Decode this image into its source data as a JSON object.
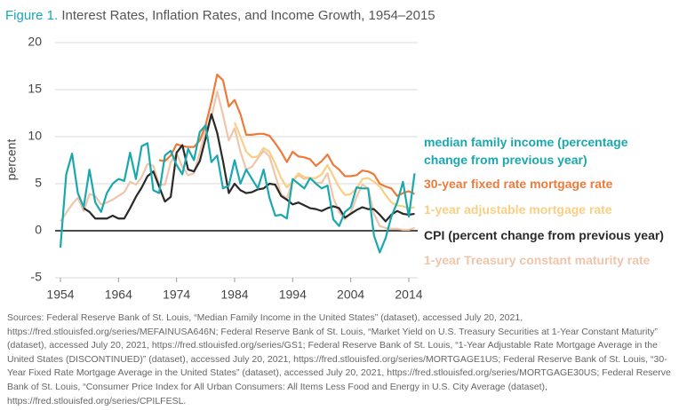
{
  "chart_data": {
    "type": "line",
    "title_label": "Figure 1.",
    "title": "Interest Rates, Inflation Rates, and Income Growth, 1954–2015",
    "y_label": "percent",
    "x": [
      1954,
      1955,
      1956,
      1957,
      1958,
      1959,
      1960,
      1961,
      1962,
      1963,
      1964,
      1965,
      1966,
      1967,
      1968,
      1969,
      1970,
      1971,
      1972,
      1973,
      1974,
      1975,
      1976,
      1977,
      1978,
      1979,
      1980,
      1981,
      1982,
      1983,
      1984,
      1985,
      1986,
      1987,
      1988,
      1989,
      1990,
      1991,
      1992,
      1993,
      1994,
      1995,
      1996,
      1997,
      1998,
      1999,
      2000,
      2001,
      2002,
      2003,
      2004,
      2005,
      2006,
      2007,
      2008,
      2009,
      2010,
      2011,
      2012,
      2013,
      2014,
      2015
    ],
    "xlim": [
      1954,
      2015
    ],
    "xticks": [
      1954,
      1964,
      1974,
      1984,
      1994,
      2004,
      2014
    ],
    "ylim": [
      -5,
      20
    ],
    "yticks": [
      -5,
      0,
      5,
      10,
      15,
      20
    ],
    "grid": true,
    "series": [
      {
        "name": "median family income (percentage change from previous year)",
        "color": "#1aa8ae",
        "values": [
          -1.8,
          6,
          8.2,
          4,
          2.5,
          6.5,
          3,
          2,
          4,
          5,
          5.5,
          5.3,
          8.3,
          5.5,
          9,
          9.3,
          4.3,
          4,
          8,
          8.5,
          7,
          6,
          8.7,
          7.5,
          10.5,
          11.2,
          7.3,
          8,
          4.5,
          4.8,
          7.5,
          5,
          6.5,
          5.5,
          4.5,
          6.5,
          3.5,
          1.6,
          1.7,
          1.3,
          5.5,
          5,
          4.5,
          5.6,
          5,
          4.5,
          4.8,
          1.2,
          0.5,
          2,
          2.5,
          4.6,
          4.5,
          4.5,
          -0.5,
          -2.3,
          -0.8,
          1.5,
          3,
          5.2,
          1.5,
          6.1
        ]
      },
      {
        "name": "30-year fixed rate mortgage rate",
        "color": "#ee7a3a",
        "values": [
          null,
          null,
          null,
          null,
          null,
          null,
          null,
          null,
          null,
          null,
          null,
          null,
          null,
          null,
          null,
          null,
          null,
          7.5,
          7.4,
          8.0,
          9.2,
          9.0,
          8.9,
          8.9,
          9.6,
          11.2,
          13.7,
          16.6,
          16.0,
          13.2,
          13.9,
          12.4,
          10.2,
          10.2,
          10.3,
          10.3,
          10.1,
          9.3,
          8.4,
          7.3,
          8.4,
          7.9,
          7.8,
          7.6,
          6.9,
          7.4,
          8.1,
          7.0,
          6.5,
          5.8,
          5.8,
          5.9,
          6.4,
          6.3,
          6.0,
          5.0,
          4.7,
          4.5,
          3.7,
          4.0,
          4.2,
          3.9
        ]
      },
      {
        "name": "1-year adjustable mortgage rate",
        "color": "#f8cf85",
        "values": [
          null,
          null,
          null,
          null,
          null,
          null,
          null,
          null,
          null,
          null,
          null,
          null,
          null,
          null,
          null,
          null,
          null,
          null,
          null,
          null,
          null,
          null,
          null,
          null,
          null,
          null,
          null,
          null,
          null,
          null,
          11.5,
          10.0,
          8.4,
          7.8,
          7.9,
          8.8,
          8.4,
          7.1,
          5.6,
          4.6,
          5.3,
          6.1,
          5.7,
          5.6,
          5.6,
          6.0,
          7.0,
          5.8,
          4.6,
          3.8,
          3.9,
          4.5,
          5.5,
          5.6,
          5.2,
          4.7,
          3.8,
          3.0,
          2.7,
          2.6,
          2.4,
          2.5
        ]
      },
      {
        "name": "CPI (percent change from previous year)",
        "color": "#2a2a2a",
        "values": [
          null,
          null,
          null,
          null,
          2.4,
          2.0,
          1.3,
          1.3,
          1.3,
          1.6,
          1.3,
          1.3,
          2.4,
          3.6,
          4.6,
          5.8,
          6.3,
          4.7,
          3.1,
          3.6,
          8.3,
          9.1,
          6.5,
          6.3,
          7.4,
          9.8,
          12.4,
          10.4,
          7.4,
          4.0,
          5.0,
          4.3,
          4.0,
          4.1,
          4.4,
          4.5,
          5.0,
          4.9,
          3.7,
          3.3,
          2.8,
          3.0,
          2.7,
          2.4,
          2.3,
          2.1,
          2.4,
          2.6,
          2.4,
          1.4,
          1.8,
          2.2,
          2.5,
          2.3,
          2.3,
          1.7,
          1.0,
          1.7,
          2.1,
          1.8,
          1.7,
          1.8
        ]
      },
      {
        "name": "1-year Treasury constant maturity rate",
        "color": "#efc5ab",
        "values": [
          1.0,
          1.9,
          2.8,
          3.5,
          2.1,
          3.9,
          3.7,
          2.8,
          3.0,
          3.3,
          3.7,
          4.1,
          5.2,
          4.9,
          5.7,
          7.1,
          6.9,
          4.9,
          4.9,
          7.3,
          8.2,
          6.8,
          5.9,
          6.1,
          8.3,
          10.7,
          12.0,
          14.8,
          12.3,
          9.6,
          10.9,
          8.4,
          6.5,
          6.8,
          7.7,
          8.5,
          7.9,
          5.9,
          3.9,
          3.4,
          5.3,
          5.9,
          5.5,
          5.6,
          5.1,
          5.1,
          6.1,
          3.5,
          2.0,
          1.2,
          1.9,
          3.6,
          4.9,
          4.5,
          1.8,
          0.5,
          0.3,
          0.2,
          0.2,
          0.1,
          0.1,
          0.3
        ]
      }
    ]
  },
  "sources": "Sources: Federal Reserve Bank of St. Louis, “Median Family Income in the United States” (dataset), accessed July 20, 2021, https://fred.stlouisfed.org/series/MEFAINUSA646N; Federal Reserve Bank of St. Louis, “Market Yield on U.S. Treasury Securities at 1-Year Constant Maturity” (dataset), accessed July 20, 2021, https://fred.stlouisfed.org/series/GS1; Federal Reserve Bank of St. Louis, “1-Year Adjustable Rate Mortgage Average in the United States (DISCONTINUED)” (dataset), accessed July 20, 2021, https://fred.stlouisfed.org/series/MORTGAGE1US; Federal Reserve Bank of St. Louis, “30-Year Fixed Rate Mortgage Average in the United States” (dataset), accessed July 20, 2021, https://fred.stlouisfed.org/series/MORTGAGE30US; Federal Reserve Bank of St. Louis, “Consumer Price Index for All Urban Consumers: All Items Less Food and Energy in U.S. City Average (dataset), https://fred.stlouisfed.org/series/CPILFESL."
}
